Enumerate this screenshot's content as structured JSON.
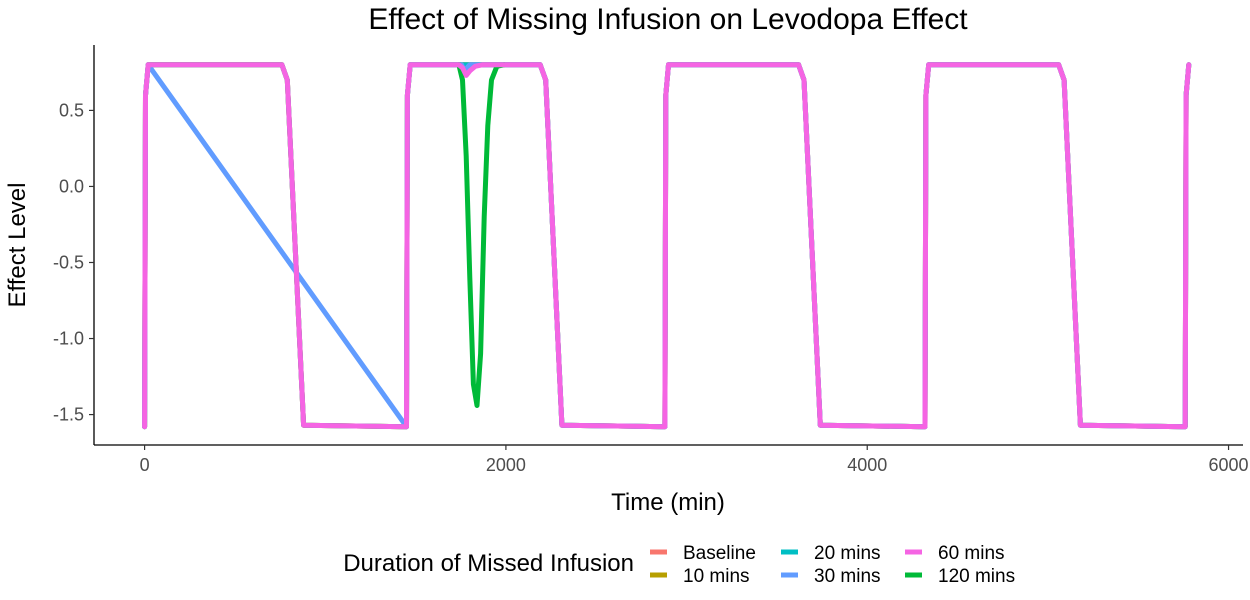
{
  "chart_data": {
    "type": "line",
    "title": "Effect of Missing Infusion on Levodopa Effect",
    "xlabel": "Time (min)",
    "ylabel": "Effect Level",
    "xlim": [
      -280,
      6080
    ],
    "ylim": [
      -1.7,
      0.93
    ],
    "x_ticks": [
      0,
      2000,
      4000,
      6000
    ],
    "x_tick_labels": [
      "0",
      "2000",
      "4000",
      "6000"
    ],
    "y_ticks": [
      0.5,
      0.0,
      -0.5,
      -1.0,
      -1.5
    ],
    "y_tick_labels": [
      "0.5",
      "0.0",
      "-0.5",
      "-1.0",
      "-1.5"
    ],
    "grid": false,
    "legend": {
      "title": "Duration of Missed Infusion",
      "position": "bottom"
    },
    "series": [
      {
        "name": "Baseline",
        "color": "#F8766D",
        "x": [
          0,
          5,
          20,
          760,
          790,
          880,
          1450,
          1455,
          1470,
          2190,
          2220,
          2310,
          2880,
          2885,
          2900,
          3620,
          3650,
          3740,
          4320,
          4325,
          4340,
          5060,
          5090,
          5180,
          5760,
          5765,
          5780
        ],
        "y": [
          -1.58,
          0.6,
          0.8,
          0.8,
          0.7,
          -1.57,
          -1.58,
          0.6,
          0.8,
          0.8,
          0.7,
          -1.57,
          -1.58,
          0.6,
          0.8,
          0.8,
          0.7,
          -1.57,
          -1.58,
          0.6,
          0.8,
          0.8,
          0.7,
          -1.57,
          -1.58,
          0.6,
          0.8
        ]
      },
      {
        "name": "10 mins",
        "color": "#B79F00",
        "x": [
          0,
          5,
          20,
          760,
          790,
          880,
          1450,
          1455,
          1470,
          2190,
          2220,
          2310,
          2880,
          2885,
          2900,
          3620,
          3650,
          3740,
          4320,
          4325,
          4340,
          5060,
          5090,
          5180,
          5760,
          5765,
          5780
        ],
        "y": [
          -1.58,
          0.6,
          0.8,
          0.8,
          0.7,
          -1.57,
          -1.58,
          0.6,
          0.8,
          0.8,
          0.7,
          -1.57,
          -1.58,
          0.6,
          0.8,
          0.8,
          0.7,
          -1.57,
          -1.58,
          0.6,
          0.8,
          0.8,
          0.7,
          -1.57,
          -1.58,
          0.6,
          0.8
        ]
      },
      {
        "name": "20 mins",
        "color": "#00BFC4",
        "x": [
          0,
          5,
          20,
          760,
          790,
          880,
          1450,
          1455,
          1470,
          2190,
          2220,
          2310,
          2880,
          2885,
          2900,
          3620,
          3650,
          3740,
          4320,
          4325,
          4340,
          5060,
          5090,
          5180,
          5760,
          5765,
          5780
        ],
        "y": [
          -1.58,
          0.6,
          0.8,
          0.8,
          0.7,
          -1.57,
          -1.58,
          0.6,
          0.8,
          0.8,
          0.7,
          -1.57,
          -1.58,
          0.6,
          0.8,
          0.8,
          0.7,
          -1.57,
          -1.58,
          0.6,
          0.8,
          0.8,
          0.7,
          -1.57,
          -1.58,
          0.6,
          0.8
        ]
      },
      {
        "name": "30 mins",
        "color": "#619CFF",
        "x": [
          0,
          5,
          20,
          1450,
          1455,
          1470,
          1755,
          1770,
          1785,
          1800,
          2190,
          2220,
          2310,
          2880,
          2885,
          2900,
          3620,
          3650,
          3740,
          4320,
          4325,
          4340,
          5060,
          5090,
          5180,
          5760,
          5765,
          5780
        ],
        "y": [
          -1.58,
          0.6,
          0.8,
          -1.58,
          0.6,
          0.8,
          0.8,
          0.76,
          0.78,
          0.8,
          0.8,
          0.7,
          -1.57,
          -1.58,
          0.6,
          0.8,
          0.8,
          0.7,
          -1.57,
          -1.58,
          0.6,
          0.8,
          0.8,
          0.7,
          -1.57,
          -1.58,
          0.6,
          0.8
        ]
      },
      {
        "name": "60 mins",
        "color": "#F564E3",
        "x": [
          0,
          5,
          20,
          760,
          790,
          880,
          1450,
          1455,
          1470,
          1740,
          1760,
          1780,
          1800,
          1830,
          1870,
          2190,
          2220,
          2310,
          2880,
          2885,
          2900,
          3620,
          3650,
          3740,
          4320,
          4325,
          4340,
          5060,
          5090,
          5180,
          5760,
          5765,
          5780
        ],
        "y": [
          -1.58,
          0.6,
          0.8,
          0.8,
          0.7,
          -1.57,
          -1.58,
          0.6,
          0.8,
          0.8,
          0.78,
          0.73,
          0.76,
          0.79,
          0.8,
          0.8,
          0.7,
          -1.57,
          -1.58,
          0.6,
          0.8,
          0.8,
          0.7,
          -1.57,
          -1.58,
          0.6,
          0.8,
          0.8,
          0.7,
          -1.57,
          -1.58,
          0.6,
          0.8
        ]
      },
      {
        "name": "120 mins",
        "color": "#00BA38",
        "x": [
          1740,
          1760,
          1780,
          1800,
          1820,
          1840,
          1860,
          1880,
          1900,
          1920,
          1950,
          1990
        ],
        "y": [
          0.8,
          0.7,
          0.2,
          -0.6,
          -1.3,
          -1.44,
          -1.1,
          -0.2,
          0.4,
          0.7,
          0.79,
          0.8
        ]
      }
    ],
    "legend_layout": [
      [
        "Baseline",
        "10 mins"
      ],
      [
        "20 mins",
        "30 mins"
      ],
      [
        "60 mins",
        "120 mins"
      ]
    ]
  }
}
